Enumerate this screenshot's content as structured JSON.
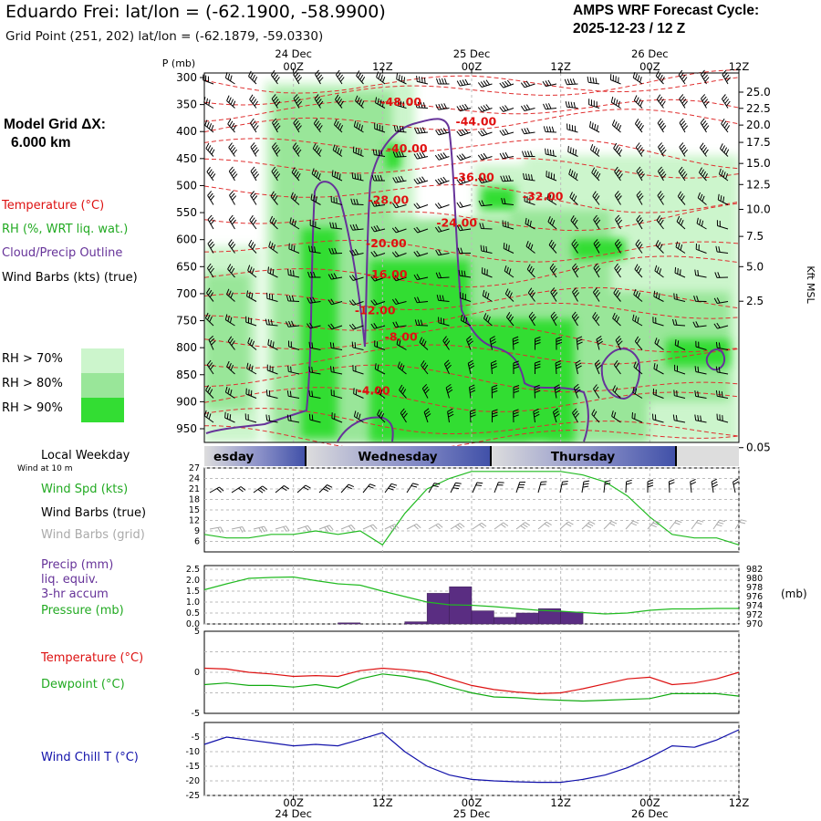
{
  "header": {
    "title": "Eduardo Frei:  lat/lon = (-62.1900, -58.9900)",
    "subtitle": "Grid Point (251, 202) lat/lon = (-62.1879, -59.0330)",
    "cycle_line1": "AMPS WRF Forecast Cycle:",
    "cycle_line2": "2025-12-23 / 12  Z"
  },
  "left_panel": {
    "grid_line1": "Model Grid ΔX:",
    "grid_line2": "6.000 km",
    "legend_temperature": "Temperature (°C)",
    "legend_rh": "RH (%, WRT liq. wat.)",
    "legend_cloud": "Cloud/Precip Outline",
    "legend_wind": "Wind Barbs (kts) (true)",
    "rh_keys": [
      "RH > 70%",
      "RH > 80%",
      "RH > 90%"
    ],
    "rh_colors": [
      "#ccf5cc",
      "#99e699",
      "#33dd33"
    ],
    "weekday_label": "Local Weekday",
    "wind10m_label": "Wind at 10 m",
    "wind_spd": "Wind Spd (kts)",
    "wind_barbs_true": "Wind Barbs (true)",
    "wind_barbs_grid": "Wind Barbs (grid)",
    "precip1": "Precip (mm)",
    "precip2": "liq. equiv.",
    "precip3": "3-hr accum",
    "pressure": "Pressure (mb)",
    "temp": "Temperature (°C)",
    "dew": "Dewpoint (°C)",
    "windchill": "Wind Chill T (°C)"
  },
  "colors": {
    "temperature": "#dd1111",
    "dewpoint": "#11aa11",
    "cloud_outline": "#663399",
    "precip_bar": "#5a2d82",
    "wind_speed": "#22bb22",
    "wind_chill": "#1111aa",
    "grid_barb": "#aaaaaa"
  },
  "chart_data": [
    {
      "type": "heatmap",
      "ylabel_left": "P (mb)",
      "ylabel_right": "Kft MSL",
      "top_dates": [
        "24 Dec",
        "25 Dec",
        "26 Dec"
      ],
      "x_ticks": [
        "00Z",
        "12Z",
        "00Z",
        "12Z",
        "00Z",
        "12Z"
      ],
      "x_hours": [
        12,
        24,
        36,
        48,
        60,
        72
      ],
      "xlim_hours": [
        0,
        72
      ],
      "pressure_ticks": [
        300,
        350,
        400,
        450,
        500,
        550,
        600,
        650,
        700,
        750,
        800,
        850,
        900,
        950
      ],
      "height_ticks": [
        "25.0",
        "22.5",
        "20.0",
        "17.5",
        "15.0",
        "12.5",
        "10.0",
        "7.5",
        "5.0",
        "2.5",
        "0.05"
      ],
      "height_tick_pressures": [
        327,
        357,
        388,
        420,
        459,
        498,
        544,
        594,
        650,
        714,
        985
      ],
      "isotherms": [
        {
          "label": "-48.00",
          "x_hour": 26.5,
          "p": 346
        },
        {
          "label": "-44.00",
          "x_hour": 36.6,
          "p": 382
        },
        {
          "label": "-40.00",
          "x_hour": 27.3,
          "p": 432
        },
        {
          "label": "-36.00",
          "x_hour": 36.3,
          "p": 485
        },
        {
          "label": "-32.00",
          "x_hour": 45.6,
          "p": 520
        },
        {
          "label": "-28.00",
          "x_hour": 24.8,
          "p": 527
        },
        {
          "label": "-24.00",
          "x_hour": 34.0,
          "p": 569
        },
        {
          "label": "-20.00",
          "x_hour": 24.5,
          "p": 607
        },
        {
          "label": "-16.00",
          "x_hour": 24.6,
          "p": 665
        },
        {
          "label": "-12.00",
          "x_hour": 23.0,
          "p": 731
        },
        {
          "label": "-8.00",
          "x_hour": 26.5,
          "p": 780
        },
        {
          "label": "-4.00",
          "x_hour": 22.8,
          "p": 880
        }
      ],
      "rh_levels": [
        "> 70%",
        "> 80%",
        "> 90%"
      ]
    },
    {
      "type": "line",
      "series": [
        {
          "name": "Wind Spd (kts)",
          "x": [
            0,
            3,
            6,
            9,
            12,
            15,
            18,
            21,
            24,
            27,
            30,
            33,
            36,
            39,
            42,
            45,
            48,
            51,
            54,
            57,
            60,
            63,
            66,
            69,
            72
          ],
          "values": [
            8,
            7,
            7,
            8,
            8,
            9,
            8,
            9,
            5,
            14,
            21,
            24,
            26,
            26,
            26,
            26,
            26,
            25,
            23,
            19,
            13,
            8,
            7,
            7,
            5
          ]
        }
      ],
      "ylim": [
        3,
        27
      ],
      "yticks": [
        6,
        9,
        12,
        15,
        18,
        21,
        24,
        27
      ]
    },
    {
      "type": "bar",
      "series": [
        {
          "name": "Precip (mm)",
          "x_hours": [
            16.5,
            19.5,
            22.5,
            25.5,
            28.5,
            31.5,
            34.5,
            37.5,
            40.5,
            43.5,
            46.5,
            49.5
          ],
          "values": [
            0.0,
            0.05,
            0.0,
            0.0,
            0.1,
            1.4,
            1.7,
            0.6,
            0.3,
            0.5,
            0.7,
            0.55
          ]
        },
        {
          "name": "Pressure (mb)",
          "x": [
            0,
            3,
            6,
            9,
            12,
            15,
            18,
            21,
            24,
            27,
            30,
            33,
            36,
            39,
            42,
            45,
            48,
            51,
            54,
            57,
            60,
            63,
            66,
            69,
            72
          ],
          "values": [
            977.5,
            978.8,
            980.0,
            980.2,
            980.3,
            979.5,
            978.8,
            978.5,
            977.2,
            976.0,
            974.8,
            974.2,
            974.1,
            973.8,
            973.4,
            973.0,
            972.8,
            972.5,
            972.2,
            972.4,
            973.0,
            973.3,
            973.3,
            973.4,
            973.4
          ]
        }
      ],
      "ylim_left": [
        0,
        2.5
      ],
      "yticks_left": [
        0.0,
        0.5,
        1.0,
        1.5,
        2.0,
        2.5
      ],
      "ylim_right": [
        970,
        982
      ],
      "yticks_right": [
        970,
        972,
        974,
        976,
        978,
        980,
        982
      ],
      "ylabel_right": "(mb)"
    },
    {
      "type": "line",
      "series": [
        {
          "name": "Temperature (°C)",
          "x": [
            0,
            3,
            6,
            9,
            12,
            15,
            18,
            21,
            24,
            27,
            30,
            33,
            36,
            39,
            42,
            45,
            48,
            51,
            54,
            57,
            60,
            63,
            66,
            69,
            72
          ],
          "values": [
            0.5,
            0.4,
            0.0,
            -0.2,
            -0.5,
            -0.4,
            -0.5,
            0.2,
            0.5,
            0.3,
            0.0,
            -0.8,
            -1.6,
            -2.1,
            -2.4,
            -2.6,
            -2.5,
            -2.0,
            -1.4,
            -0.8,
            -0.6,
            -1.5,
            -1.3,
            -0.8,
            0.0
          ]
        },
        {
          "name": "Dewpoint (°C)",
          "x": [
            0,
            3,
            6,
            9,
            12,
            15,
            18,
            21,
            24,
            27,
            30,
            33,
            36,
            39,
            42,
            45,
            48,
            51,
            54,
            57,
            60,
            63,
            66,
            69,
            72
          ],
          "values": [
            -1.5,
            -1.3,
            -1.6,
            -1.6,
            -1.8,
            -1.5,
            -1.9,
            -0.8,
            -0.2,
            -0.5,
            -1.0,
            -1.8,
            -2.5,
            -3.0,
            -3.1,
            -3.3,
            -3.4,
            -3.5,
            -3.4,
            -3.3,
            -3.2,
            -2.6,
            -2.6,
            -2.6,
            -2.9
          ]
        }
      ],
      "ylim": [
        -5,
        5
      ],
      "yticks": [
        -5,
        0,
        5
      ]
    },
    {
      "type": "line",
      "series": [
        {
          "name": "Wind Chill T (°C)",
          "x": [
            0,
            3,
            6,
            9,
            12,
            15,
            18,
            21,
            24,
            27,
            30,
            33,
            36,
            39,
            42,
            45,
            48,
            51,
            54,
            57,
            60,
            63,
            66,
            69,
            72
          ],
          "values": [
            -7.5,
            -5.0,
            -6.0,
            -7.0,
            -8.0,
            -7.5,
            -8.0,
            -5.8,
            -3.5,
            -10.0,
            -15.0,
            -18.0,
            -19.5,
            -20.0,
            -20.3,
            -20.5,
            -20.5,
            -19.5,
            -18.0,
            -15.5,
            -12.0,
            -8.0,
            -8.5,
            -6.0,
            -2.5
          ]
        }
      ],
      "ylim": [
        -25,
        0
      ],
      "yticks": [
        -25,
        -20,
        -15,
        -10,
        -5
      ]
    }
  ],
  "weekday_bar": {
    "days": [
      "esday",
      "Wednesday",
      "Thursday"
    ]
  }
}
